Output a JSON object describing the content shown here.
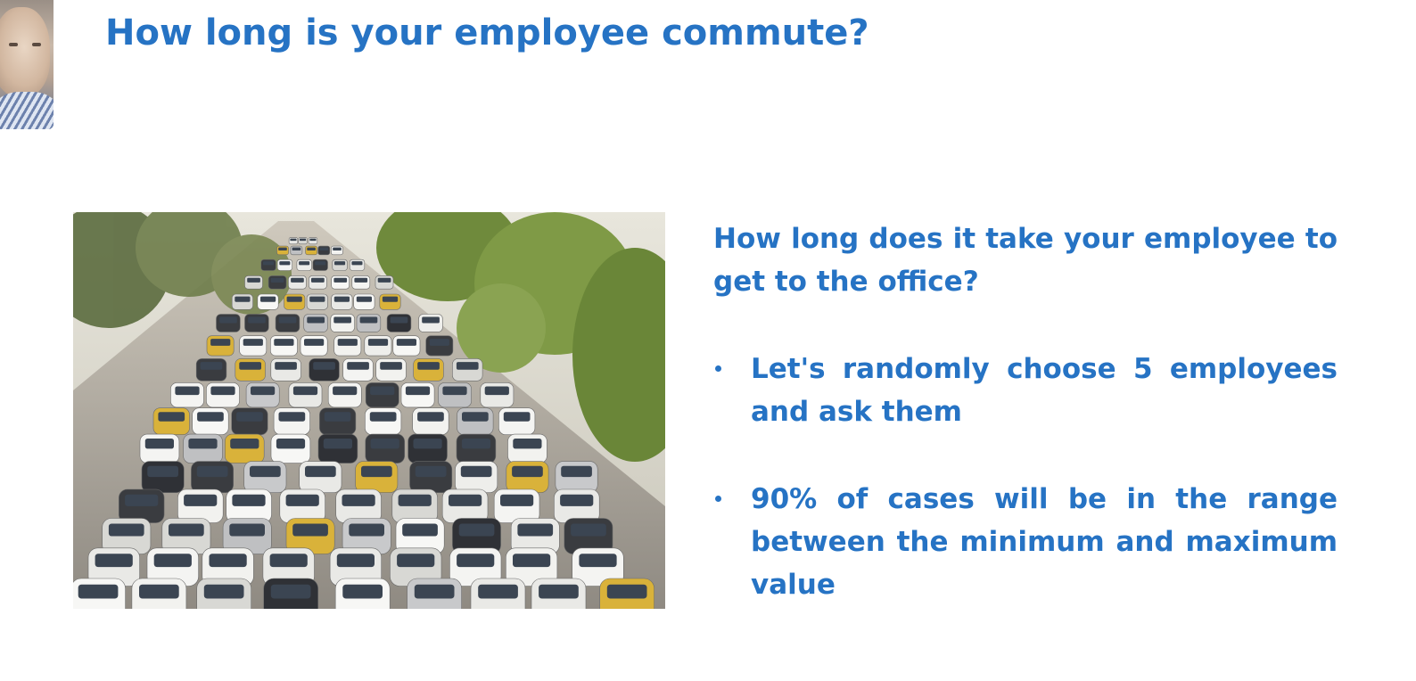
{
  "slide": {
    "title": "How long is your employee commute?",
    "lead": "How long does it take your employee to get to the office?",
    "bullets": [
      "Let's randomly choose 5 employees and ask them",
      "90% of cases will be in the range between the minimum and maximum value"
    ]
  },
  "icons": {
    "webcam": "presenter-webcam-thumbnail",
    "photo": "traffic-jam-photo",
    "bullet": "bullet-dot-icon"
  },
  "colors": {
    "accent": "#2673c4",
    "background": "#ffffff"
  }
}
